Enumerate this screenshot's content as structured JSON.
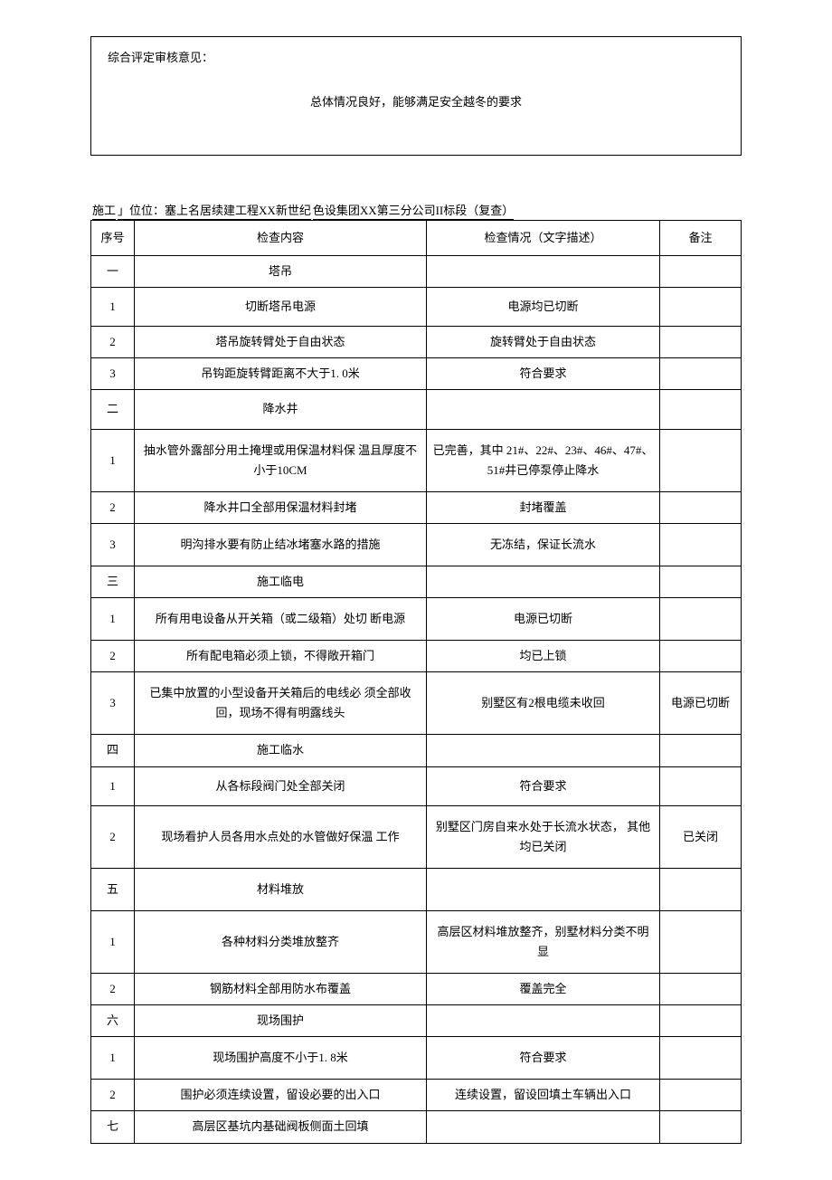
{
  "review": {
    "label": "综合评定审核意见：",
    "body": "总体情况良好，能够满足安全越冬的要求"
  },
  "unit_line": {
    "prefix": "施工",
    "bracket": "」",
    "label": "位位：",
    "part1": "塞上名居续建工程XX新世纪",
    "part2": "色设集团XX第三分公司II标段（复查）"
  },
  "headers": {
    "seq": "序号",
    "content": "检查内容",
    "status": "检查情况（文字描述）",
    "note": "备注"
  },
  "rows": [
    {
      "seq": "一",
      "content": "塔吊",
      "status": "",
      "note": ""
    },
    {
      "seq": "1",
      "content": "切断塔吊电源",
      "status": "电源均已切断",
      "note": ""
    },
    {
      "seq": "2",
      "content": "塔吊旋转臂处于自由状态",
      "status": "旋转臂处于自由状态",
      "note": ""
    },
    {
      "seq": "3",
      "content": "吊钩距旋转臂距离不大于1. 0米",
      "status": "符合要求",
      "note": ""
    },
    {
      "seq": "二",
      "content": "降水井",
      "status": "",
      "note": ""
    },
    {
      "seq": "1",
      "content": "抽水管外露部分用土掩埋或用保温材料保 温且厚度不小于10CM",
      "status": "已完善，其中 21#、22#、23#、46#、47#、51#井已停泵停止降水",
      "note": ""
    },
    {
      "seq": "2",
      "content": "降水井口全部用保温材料封堵",
      "status": "封堵覆盖",
      "note": ""
    },
    {
      "seq": "3",
      "content": "明沟排水要有防止结冰堵塞水路的措施",
      "status": "无冻结，保证长流水",
      "note": ""
    },
    {
      "seq": "三",
      "content": "施工临电",
      "status": "",
      "note": ""
    },
    {
      "seq": "1",
      "content": "所有用电设备从开关箱（或二级箱）处切 断电源",
      "status": "电源已切断",
      "note": ""
    },
    {
      "seq": "2",
      "content": "所有配电箱必须上锁，不得敞开箱门",
      "status": "均已上锁",
      "note": ""
    },
    {
      "seq": "3",
      "content": "已集中放置的小型设备开关箱后的电线必 须全部收回，现场不得有明露线头",
      "status": "别墅区有2根电缆未收回",
      "note": "电源已切断"
    },
    {
      "seq": "四",
      "content": "施工临水",
      "status": "",
      "note": ""
    },
    {
      "seq": "1",
      "content": "从各标段阀门处全部关闭",
      "status": "符合要求",
      "note": ""
    },
    {
      "seq": "2",
      "content": "现场看护人员各用水点处的水管做好保温 工作",
      "status": "别墅区门房自来水处于长流水状态， 其他均已关闭",
      "note": "已关闭"
    },
    {
      "seq": "五",
      "content": "材料堆放",
      "status": "",
      "note": ""
    },
    {
      "seq": "1",
      "content": "各种材料分类堆放整齐",
      "status": "高层区材料堆放整齐，别墅材料分类不明显",
      "note": ""
    },
    {
      "seq": "2",
      "content": "钢筋材料全部用防水布覆盖",
      "status": "覆盖完全",
      "note": ""
    },
    {
      "seq": "六",
      "content": "现场围护",
      "status": "",
      "note": ""
    },
    {
      "seq": "1",
      "content": "现场围护高度不小于1. 8米",
      "status": "符合要求",
      "note": ""
    },
    {
      "seq": "2",
      "content": "围护必须连续设置，留设必要的出入口",
      "status": "连续设置，留设回填土车辆出入口",
      "note": ""
    },
    {
      "seq": "七",
      "content": "高层区基坑内基础阀板侧面土回填",
      "status": "",
      "note": ""
    }
  ]
}
